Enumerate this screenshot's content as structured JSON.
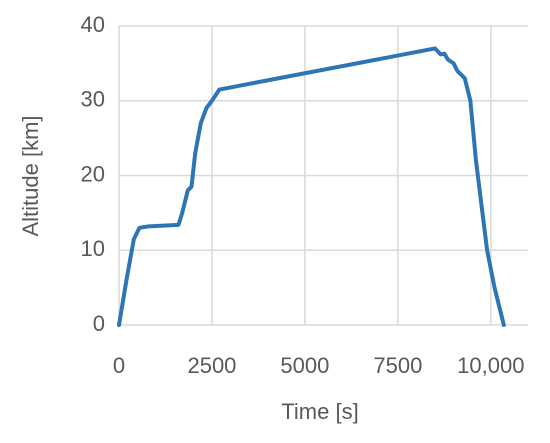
{
  "chart_data": {
    "type": "line",
    "x_label": "Time [s]",
    "y_label": "Altitude [km]",
    "series": [
      {
        "color": "#2e75b6",
        "x": [
          0,
          200,
          400,
          550,
          800,
          1600,
          1700,
          1850,
          1950,
          2050,
          2200,
          2350,
          2500,
          2700,
          8500,
          8650,
          8750,
          8850,
          9000,
          9100,
          9300,
          9450,
          9600,
          9750,
          9900,
          10100,
          10350
        ],
        "values": [
          0,
          6,
          11.5,
          13,
          13.2,
          13.4,
          15,
          18,
          18.5,
          23,
          27,
          29,
          30,
          31.5,
          37,
          36.2,
          36.3,
          35.5,
          35,
          34,
          33,
          30,
          22,
          16,
          10,
          5,
          0
        ]
      }
    ],
    "xlim": [
      0,
      11000
    ],
    "ylim": [
      0,
      40
    ],
    "xticks": [
      0,
      2500,
      5000,
      7500,
      {
        "value": 10000,
        "label": "10,000"
      }
    ],
    "yticks": [
      0,
      10,
      20,
      30,
      40
    ],
    "grid": true
  }
}
